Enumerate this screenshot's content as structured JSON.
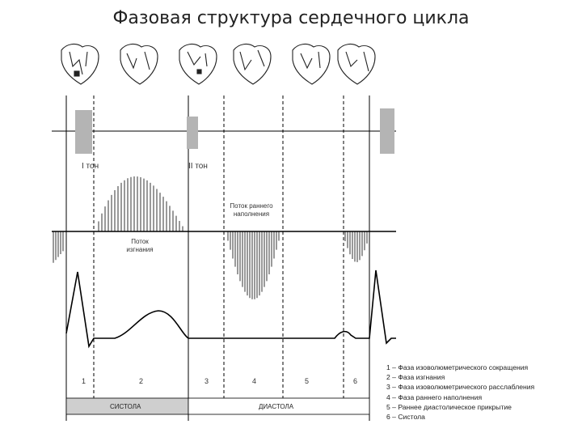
{
  "title": "Фазовая структура сердечного цикла",
  "sounds": {
    "first": "I тон",
    "second": "II тон"
  },
  "flows": {
    "ejection": "Поток изгнания",
    "early_filling": "Поток раннего наполнения"
  },
  "phase_numbers": [
    "1",
    "2",
    "3",
    "4",
    "5",
    "6"
  ],
  "cycle_bar": {
    "systole": "СИСТОЛА",
    "diastole": "ДИАСТОЛА"
  },
  "legend": [
    "1 – Фаза изоволюметрического сокращения",
    "2 – Фаза изгнания",
    "3 – Фаза изоволюметрического расслабления",
    "4 – Фаза раннего наполнения",
    "5 – Раннее диастолическое прикрытие",
    "6 – Систола"
  ],
  "colors": {
    "sound_block": "#b4b4b4",
    "systole_bar": "#cfcfcf",
    "line": "#000000"
  }
}
